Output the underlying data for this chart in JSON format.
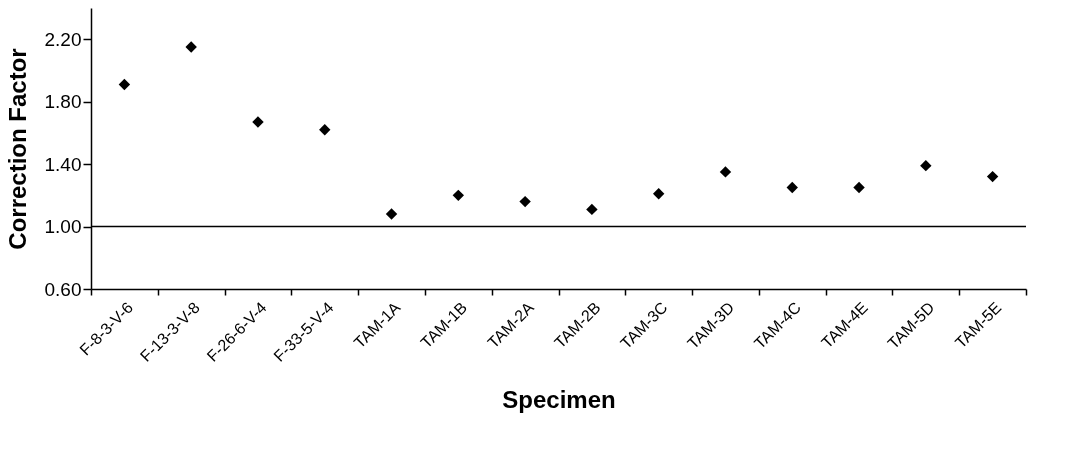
{
  "chart_data": {
    "type": "scatter",
    "xlabel": "Specimen",
    "ylabel": "Correction Factor",
    "categories": [
      "F-8-3-V-6",
      "F-13-3-V-8",
      "F-26-6-V-4",
      "F-33-5-V-4",
      "TAM-1A",
      "TAM-1B",
      "TAM-2A",
      "TAM-2B",
      "TAM-3C",
      "TAM-3D",
      "TAM-4C",
      "TAM-4E",
      "TAM-5D",
      "TAM-5E"
    ],
    "series": [
      {
        "color": "#000000",
        "values": [
          1.91,
          2.15,
          1.67,
          1.62,
          1.08,
          1.2,
          1.16,
          1.11,
          1.21,
          1.35,
          1.25,
          1.25,
          1.39,
          1.32
        ]
      }
    ],
    "ylim": [
      0.6,
      2.4
    ],
    "yticks": [
      {
        "value": 0.6,
        "label": "0.60"
      },
      {
        "value": 1.0,
        "label": "1.00"
      },
      {
        "value": 1.4,
        "label": "1.40"
      },
      {
        "value": 1.8,
        "label": "1.80"
      },
      {
        "value": 2.2,
        "label": "2.20"
      }
    ],
    "ref_lines": [
      {
        "axis": "y",
        "value": 1.0,
        "color": "#000000"
      }
    ],
    "grid": false,
    "marker": "diamond"
  }
}
